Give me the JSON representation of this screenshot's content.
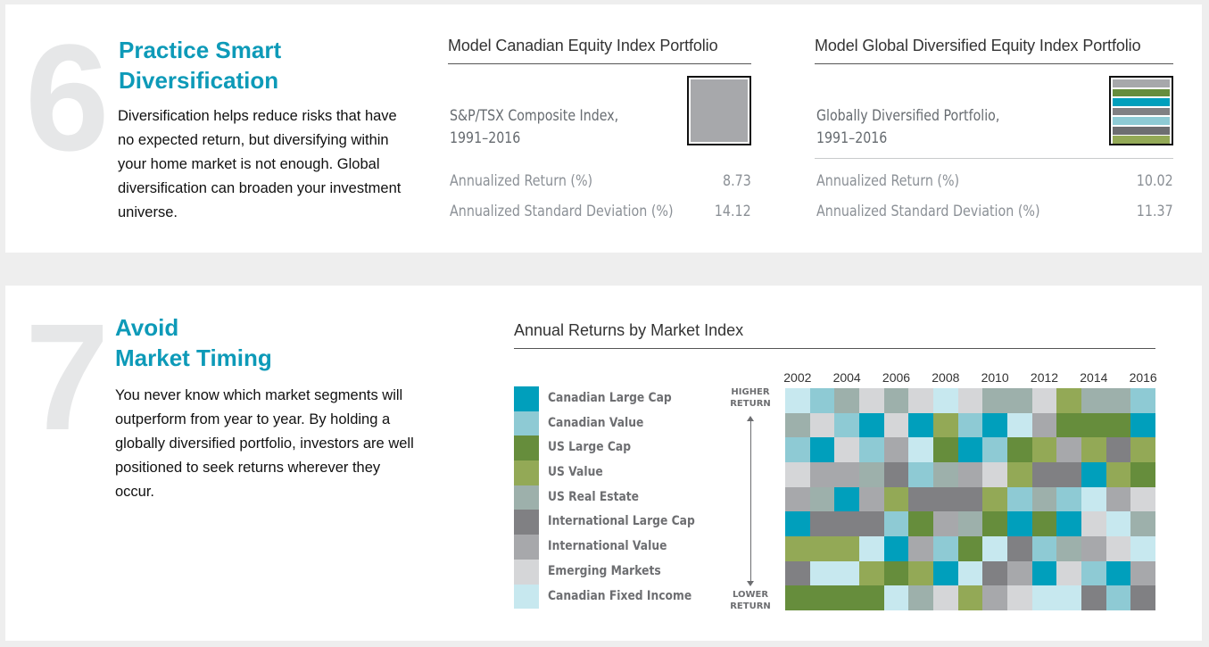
{
  "tip6": {
    "number": "6",
    "title_line1": "Practice Smart",
    "title_line2": "Diversification",
    "body": "Diversification helps reduce risks that have no expected return, but diversifying within your home market is not enough. Global diversification can broaden your investment universe."
  },
  "portfolios": [
    {
      "title": "Model Canadian Equity Index Portfolio",
      "subtitle_line1": "S&P/TSX Composite Index,",
      "subtitle_line2": "1991–2016",
      "return_label": "Annualized Return (%)",
      "return_value": "8.73",
      "sd_label": "Annualized Standard Deviation (%)",
      "sd_value": "14.12",
      "swatch_colors": [
        "#a7a8ab"
      ]
    },
    {
      "title": "Model Global Diversified Equity Index Portfolio",
      "subtitle_line1": "Globally Diversified Portfolio,",
      "subtitle_line2": "1991–2016",
      "return_label": "Annualized Return (%)",
      "return_value": "10.02",
      "sd_label": "Annualized Standard Deviation (%)",
      "sd_value": "11.37",
      "swatch_colors": [
        "#a7a8ab",
        "#668d3c",
        "#009fbc",
        "#808083",
        "#8ecad4",
        "#6d6e71",
        "#93a956"
      ]
    }
  ],
  "tip7": {
    "number": "7",
    "title_line1": "Avoid",
    "title_line2": "Market Timing",
    "body": "You never know which market segments will outperform from year to year. By holding a globally diversified portfolio, investors are well positioned to seek returns wherever they occur."
  },
  "chart_data": {
    "type": "heatmap",
    "title": "Annual Returns by Market Index",
    "x": [
      2002,
      2003,
      2004,
      2005,
      2006,
      2007,
      2008,
      2009,
      2010,
      2011,
      2012,
      2013,
      2014,
      2015,
      2016
    ],
    "x_tick_labels": [
      "2002",
      "2004",
      "2006",
      "2008",
      "2010",
      "2012",
      "2014",
      "2016"
    ],
    "y_top_label": "HIGHER RETURN",
    "y_bottom_label": "LOWER RETURN",
    "legend_position": "left",
    "series": [
      {
        "key": "CLC",
        "name": "Canadian Large Cap",
        "color": "#009fbc"
      },
      {
        "key": "CV",
        "name": "Canadian Value",
        "color": "#8ecad4"
      },
      {
        "key": "ULC",
        "name": "US Large Cap",
        "color": "#668d3c"
      },
      {
        "key": "UV",
        "name": "US Value",
        "color": "#93a956"
      },
      {
        "key": "URE",
        "name": "US Real Estate",
        "color": "#9db0ab"
      },
      {
        "key": "ILC",
        "name": "International Large Cap",
        "color": "#808083"
      },
      {
        "key": "IV",
        "name": "International Value",
        "color": "#a7a8ab"
      },
      {
        "key": "EM",
        "name": "Emerging Markets",
        "color": "#d5d6d8"
      },
      {
        "key": "CFI",
        "name": "Canadian Fixed Income",
        "color": "#c7e8ef"
      }
    ],
    "rankings_high_to_low": [
      [
        "CFI",
        "URE",
        "CV",
        "EM",
        "IV",
        "CLC",
        "UV",
        "ILC",
        "ULC"
      ],
      [
        "CV",
        "EM",
        "CLC",
        "IV",
        "URE",
        "ILC",
        "UV",
        "CFI",
        "ULC"
      ],
      [
        "URE",
        "CV",
        "EM",
        "IV",
        "CLC",
        "ILC",
        "UV",
        "CFI",
        "ULC"
      ],
      [
        "EM",
        "CLC",
        "CV",
        "URE",
        "IV",
        "ILC",
        "CFI",
        "UV",
        "ULC"
      ],
      [
        "URE",
        "EM",
        "IV",
        "ILC",
        "UV",
        "CV",
        "CLC",
        "ULC",
        "CFI"
      ],
      [
        "EM",
        "CLC",
        "CFI",
        "CV",
        "ILC",
        "ULC",
        "IV",
        "UV",
        "URE"
      ],
      [
        "CFI",
        "UV",
        "ULC",
        "URE",
        "ILC",
        "IV",
        "CV",
        "CLC",
        "EM"
      ],
      [
        "EM",
        "CV",
        "CLC",
        "IV",
        "ILC",
        "URE",
        "ULC",
        "CFI",
        "UV"
      ],
      [
        "URE",
        "CLC",
        "CV",
        "EM",
        "UV",
        "ULC",
        "CFI",
        "ILC",
        "IV"
      ],
      [
        "URE",
        "CFI",
        "ULC",
        "UV",
        "CV",
        "CLC",
        "ILC",
        "IV",
        "EM"
      ],
      [
        "EM",
        "IV",
        "UV",
        "ILC",
        "URE",
        "ULC",
        "CV",
        "CLC",
        "CFI"
      ],
      [
        "UV",
        "ULC",
        "IV",
        "ILC",
        "CV",
        "CLC",
        "URE",
        "EM",
        "CFI"
      ],
      [
        "URE",
        "ULC",
        "UV",
        "CLC",
        "CFI",
        "EM",
        "IV",
        "CV",
        "ILC"
      ],
      [
        "URE",
        "ULC",
        "ILC",
        "UV",
        "IV",
        "CFI",
        "EM",
        "CLC",
        "CV"
      ],
      [
        "CV",
        "CLC",
        "UV",
        "ULC",
        "EM",
        "URE",
        "CFI",
        "IV",
        "ILC"
      ]
    ]
  }
}
